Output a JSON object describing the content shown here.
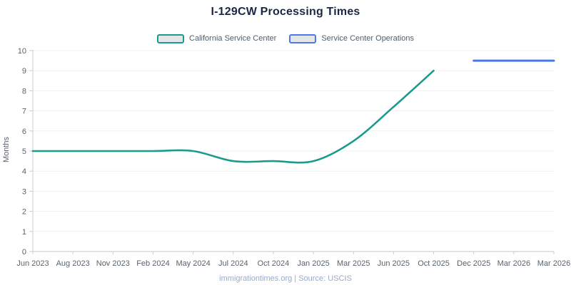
{
  "footer": {
    "text": "immigrationtimes.org | Source: USCIS"
  },
  "colors": {
    "title": "#1c2843",
    "axis_text": "#5a626c",
    "legend_text": "#4e5d6c",
    "footer_text": "#9aa9c9",
    "grid": "#f1f1f4",
    "axis_line": "#c9ccd1",
    "x_axis_line": "#c2c6cb"
  },
  "chart_data": {
    "type": "line",
    "title": "I-129CW Processing Times",
    "xlabel": "",
    "ylabel": "Months",
    "ylim": [
      0,
      10
    ],
    "y_ticks": [
      0,
      1,
      2,
      3,
      4,
      5,
      6,
      7,
      8,
      9,
      10
    ],
    "grid": "horizontal",
    "legend_position": "top",
    "categories": [
      "Jun 2023",
      "Aug 2023",
      "Nov 2023",
      "Feb 2024",
      "May 2024",
      "Jul 2024",
      "Oct 2024",
      "Jan 2025",
      "Mar 2025",
      "Jun 2025",
      "Oct 2025",
      "Dec 2025",
      "Mar 2026",
      "Mar 2026"
    ],
    "series": [
      {
        "name": "California Service Center",
        "color": "#1a9b8b",
        "smooth": true,
        "stroke_width": 2.6,
        "values": [
          5,
          5,
          5,
          5,
          5,
          4.5,
          4.5,
          4.5,
          5.5,
          7.2,
          9,
          null,
          null,
          null
        ]
      },
      {
        "name": "Service Center Operations",
        "color": "#4c78e8",
        "smooth": false,
        "stroke_width": 3,
        "values": [
          null,
          null,
          null,
          null,
          null,
          null,
          null,
          null,
          null,
          null,
          null,
          9.5,
          9.5,
          9.5
        ]
      }
    ]
  }
}
